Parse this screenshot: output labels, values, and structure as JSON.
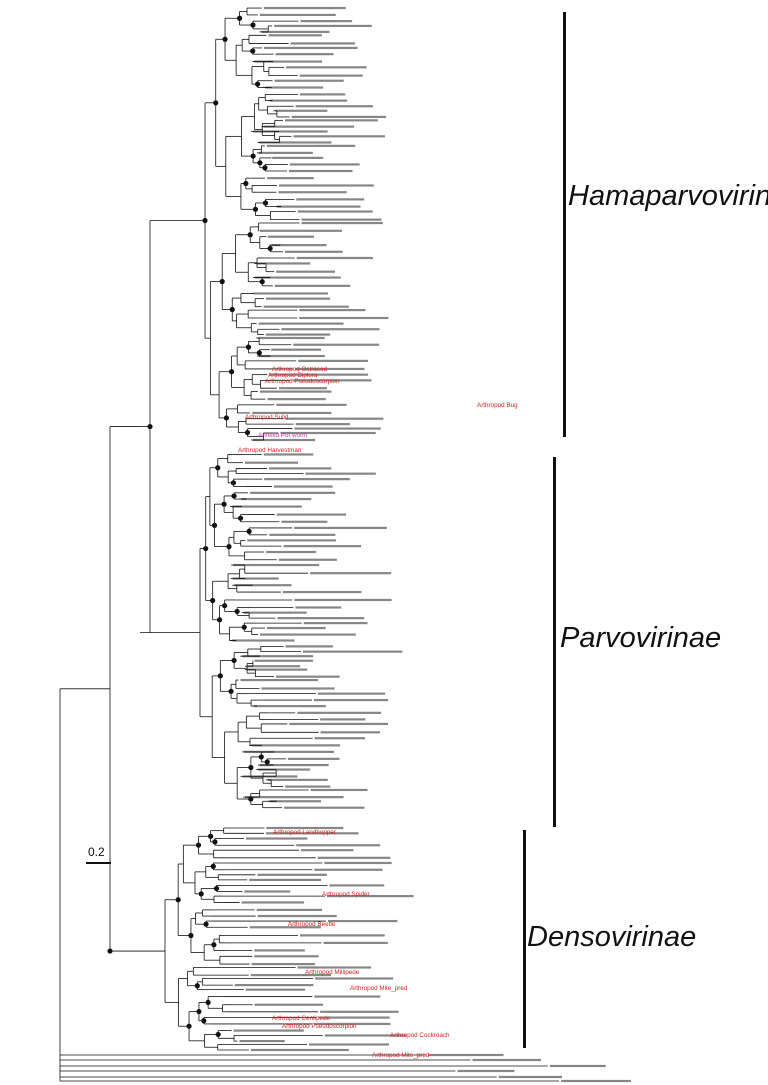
{
  "figure": {
    "scale_label": "0.2",
    "clades": [
      {
        "name": "Hamaparvovirinae"
      },
      {
        "name": "Parvovirinae"
      },
      {
        "name": "Densovirinae"
      }
    ],
    "colors": {
      "branch": "#111111",
      "leaf_label": "#222222",
      "arthropod": "#d42020",
      "highlight_blue": "#3b8fd0",
      "annelid": "#d030b0"
    }
  },
  "highlighted_leaves": [
    {
      "label": "Arthropod Ostracod",
      "color_key": "arthropod"
    },
    {
      "label": "Arthropod Diplura",
      "color_key": "arthropod"
    },
    {
      "label": "Arthropod Pseudoscorpion",
      "color_key": "arthropod"
    },
    {
      "label": "Arthropod Bug",
      "color_key": "arthropod"
    },
    {
      "label": "Arthropod Sulid",
      "color_key": "arthropod"
    },
    {
      "label": "Annelid Pot worm",
      "color_key": "annelid"
    },
    {
      "label": "Arthropod Harvestman",
      "color_key": "arthropod"
    },
    {
      "label": "Arthropod Landhopper",
      "color_key": "arthropod"
    },
    {
      "label": "Arthropod Spider",
      "color_key": "arthropod"
    },
    {
      "label": "Arthropod Beetle",
      "color_key": "arthropod"
    },
    {
      "label": "Arthropod Millipede",
      "color_key": "arthropod"
    },
    {
      "label": "Arthropod Mite_pred",
      "color_key": "arthropod"
    },
    {
      "label": "Arthropod Centipede",
      "color_key": "arthropod"
    },
    {
      "label": "Arthropod Pseudoscorpion",
      "color_key": "arthropod"
    },
    {
      "label": "Arthropod Cockroach",
      "color_key": "arthropod"
    },
    {
      "label": "Arthropod Mite_pred",
      "color_key": "arthropod"
    }
  ]
}
